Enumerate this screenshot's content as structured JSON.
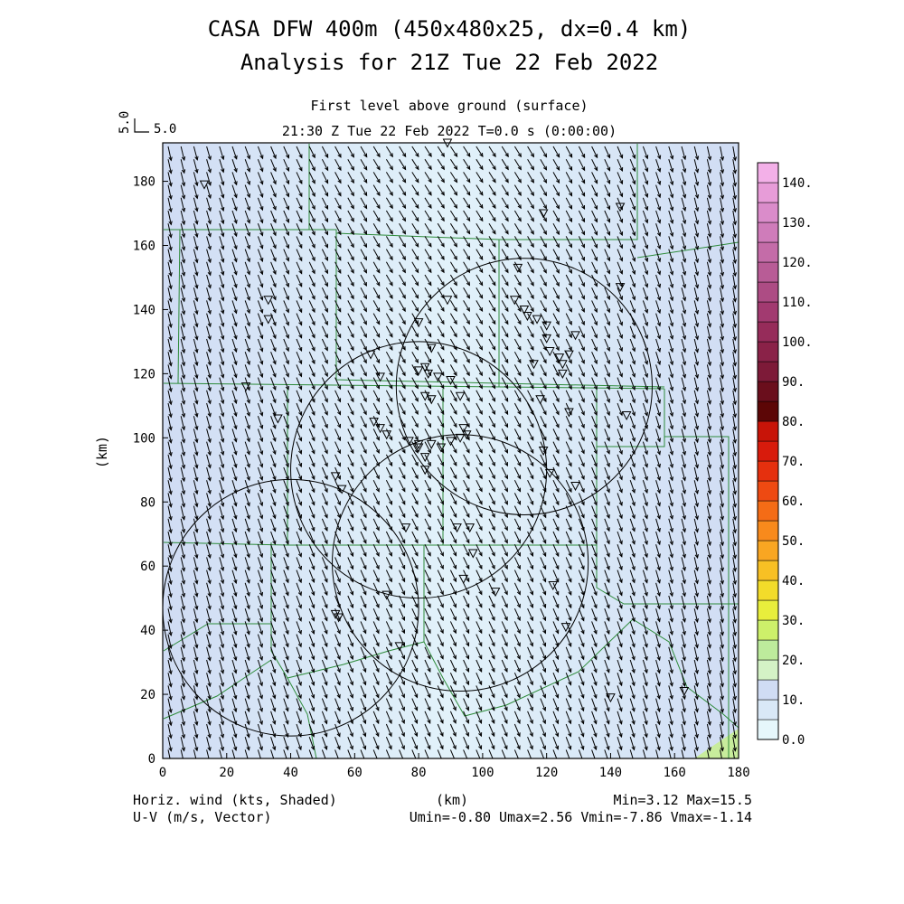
{
  "titles": {
    "line1": "CASA DFW 400m (450x480x25, dx=0.4 km)",
    "line2": "Analysis for 21Z Tue 22 Feb 2022",
    "level": "First level above ground (surface)",
    "time": "21:30 Z Tue 22 Feb 2022    T=0.0 s (0:00:00)"
  },
  "vector_ref": {
    "left": "5.0",
    "right": "5.0"
  },
  "footer": {
    "field_label": "Horiz. wind (kts, Shaded)",
    "vector_label": "U-V (m/s, Vector)",
    "xunit": "(km)",
    "minmax": "Min=3.12 Max=15.5",
    "uv": "Umin=-0.80 Umax=2.56 Vmin=-7.86 Vmax=-1.14"
  },
  "chart_data": {
    "type": "heatmap",
    "xlabel": "(km)",
    "ylabel": "(km)",
    "xlim": [
      0,
      180
    ],
    "ylim": [
      0,
      192
    ],
    "xticks": [
      0,
      20,
      40,
      60,
      80,
      100,
      120,
      140,
      160,
      180
    ],
    "yticks": [
      0,
      20,
      40,
      60,
      80,
      100,
      120,
      140,
      160,
      180
    ],
    "field_min": 3.12,
    "field_max": 15.5,
    "u_range": [
      -0.8,
      2.56
    ],
    "v_range": [
      -7.86,
      -1.14
    ],
    "colorbar": {
      "levels": [
        0,
        5,
        10,
        15,
        20,
        25,
        30,
        35,
        40,
        45,
        50,
        55,
        60,
        65,
        70,
        75,
        80,
        85,
        90,
        95,
        100,
        105,
        110,
        115,
        120,
        125,
        130,
        135,
        140
      ],
      "labels": [
        "0.0",
        "10.",
        "20.",
        "30.",
        "40.",
        "50.",
        "60.",
        "70.",
        "80.",
        "90.",
        "100.",
        "110.",
        "120.",
        "130.",
        "140."
      ],
      "colors": [
        "#e6f7fb",
        "#d9e8f7",
        "#d0dcf4",
        "#d4f2c6",
        "#bdeb9c",
        "#cdf06a",
        "#e8ee3c",
        "#f3dc2a",
        "#f8c024",
        "#f9a622",
        "#f88a1c",
        "#f46c16",
        "#ee4a12",
        "#e5300e",
        "#d81b0c",
        "#c81408",
        "#5c0606",
        "#6a0e1c",
        "#7d1a38",
        "#8a2248",
        "#962c5a",
        "#a23a70",
        "#ad4c84",
        "#b85c96",
        "#c46ca8",
        "#cf7cba",
        "#da8cca",
        "#e79cd8",
        "#f3b0e8"
      ]
    },
    "radar_rings_km": [
      {
        "x": 40,
        "y": 47,
        "r": 40
      },
      {
        "x": 80,
        "y": 90,
        "r": 40
      },
      {
        "x": 113,
        "y": 116,
        "r": 40
      },
      {
        "x": 93,
        "y": 61,
        "r": 40
      }
    ],
    "stations_km": [
      [
        13,
        179
      ],
      [
        33,
        143
      ],
      [
        33,
        137
      ],
      [
        26,
        116
      ],
      [
        36,
        106
      ],
      [
        65,
        126
      ],
      [
        68,
        119
      ],
      [
        66,
        105
      ],
      [
        68,
        103
      ],
      [
        70,
        101
      ],
      [
        54,
        88
      ],
      [
        56,
        84
      ],
      [
        54,
        45
      ],
      [
        55,
        44
      ],
      [
        70,
        51
      ],
      [
        74,
        35
      ],
      [
        77,
        99
      ],
      [
        80,
        98
      ],
      [
        80,
        97
      ],
      [
        82,
        94
      ],
      [
        82,
        90
      ],
      [
        83,
        120
      ],
      [
        84,
        112
      ],
      [
        82,
        113
      ],
      [
        86,
        119
      ],
      [
        90,
        118
      ],
      [
        89,
        143
      ],
      [
        80,
        136
      ],
      [
        84,
        128
      ],
      [
        80,
        121
      ],
      [
        82,
        122
      ],
      [
        87,
        97
      ],
      [
        90,
        99
      ],
      [
        93,
        100
      ],
      [
        95,
        101
      ],
      [
        94,
        103
      ],
      [
        92,
        72
      ],
      [
        96,
        72
      ],
      [
        97,
        64
      ],
      [
        94,
        56
      ],
      [
        104,
        52
      ],
      [
        113,
        140
      ],
      [
        111,
        153
      ],
      [
        110,
        143
      ],
      [
        114,
        138
      ],
      [
        117,
        137
      ],
      [
        120,
        135
      ],
      [
        120,
        131
      ],
      [
        121,
        127
      ],
      [
        124,
        125
      ],
      [
        125,
        123
      ],
      [
        127,
        126
      ],
      [
        129,
        132
      ],
      [
        125,
        120
      ],
      [
        118,
        112
      ],
      [
        116,
        123
      ],
      [
        119,
        96
      ],
      [
        121,
        89
      ],
      [
        127,
        108
      ],
      [
        129,
        85
      ],
      [
        122,
        54
      ],
      [
        126,
        41
      ],
      [
        119,
        170
      ],
      [
        143,
        172
      ],
      [
        143,
        147
      ],
      [
        145,
        107
      ],
      [
        140,
        19
      ],
      [
        163,
        21
      ],
      [
        93,
        113
      ],
      [
        84,
        98
      ],
      [
        76,
        72
      ],
      [
        89,
        192
      ]
    ]
  }
}
